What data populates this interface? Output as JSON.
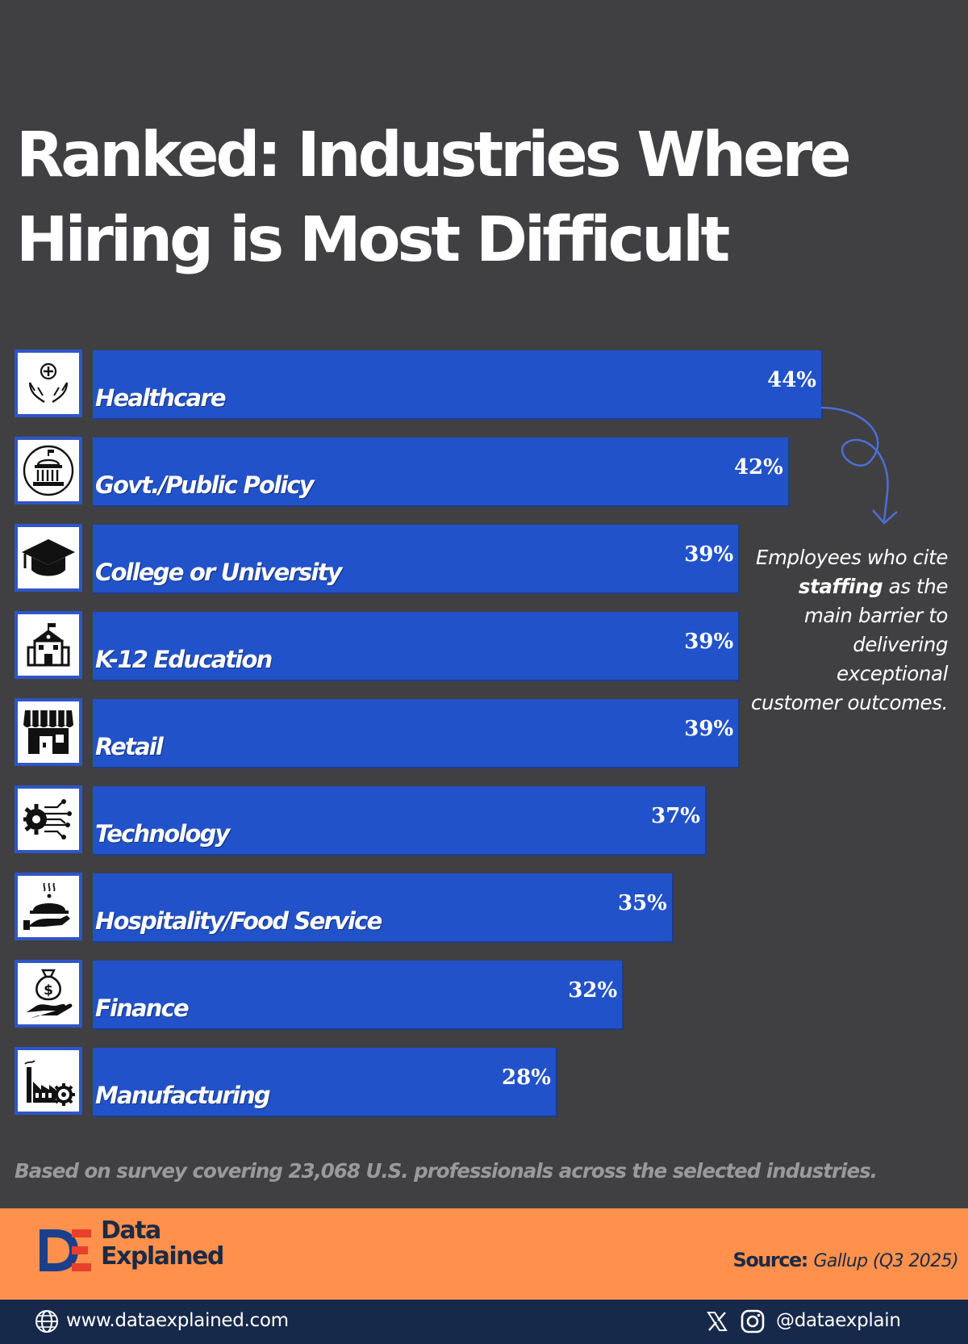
{
  "header": {
    "title_line1": "Ranked: Industries Where",
    "title_line2": "Hiring is Most Difficult"
  },
  "chart_data": {
    "type": "bar",
    "orientation": "horizontal",
    "title": "Ranked: Industries Where Hiring is Most Difficult",
    "categories": [
      "Healthcare",
      "Govt./Public Policy",
      "College or University",
      "K-12 Education",
      "Retail",
      "Technology",
      "Hospitality/Food Service",
      "Finance",
      "Manufacturing"
    ],
    "values": [
      44,
      42,
      39,
      39,
      39,
      37,
      35,
      32,
      28
    ],
    "value_labels": [
      "44%",
      "42%",
      "39%",
      "39%",
      "39%",
      "37%",
      "35%",
      "32%",
      "28%"
    ],
    "icons": [
      "healthcare-icon",
      "government-building-icon",
      "graduation-cap-icon",
      "school-icon",
      "storefront-icon",
      "tech-gear-icon",
      "food-service-icon",
      "money-bag-icon",
      "factory-icon"
    ],
    "bar_color": "#2152c9",
    "xlim": [
      0,
      44
    ],
    "grid": false,
    "legend": "none"
  },
  "annotation": {
    "part1": "Employees who cite ",
    "emphasis": "staffing",
    "part2": " as the main barrier to delivering exceptional customer outcomes."
  },
  "footnote": "Based on survey covering 23,068 U.S. professionals across the selected industries.",
  "brand": {
    "line1": "Data",
    "line2": "Explained",
    "source_label": "Source:",
    "source_value": "Gallup (Q3 2025)"
  },
  "footer": {
    "website": "www.dataexplained.com",
    "handle": "@dataexplain"
  },
  "colors": {
    "background": "#404042",
    "bar": "#2152c9",
    "band": "#ff914d",
    "footer": "#17294a"
  }
}
